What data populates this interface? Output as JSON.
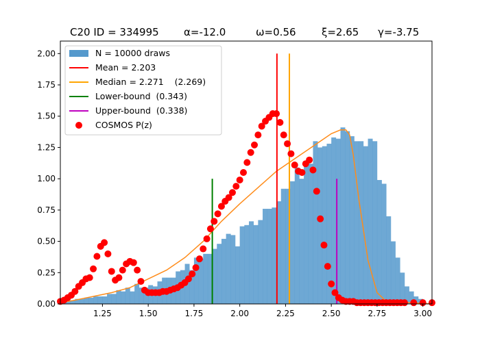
{
  "chart_data": {
    "type": "bar",
    "title_parts": [
      "C20 ID = 334995",
      "α=-12.0",
      "ω=0.56",
      "ξ=2.65",
      "γ=-3.75"
    ],
    "xlim": [
      1.02,
      3.05
    ],
    "ylim": [
      0,
      2.1
    ],
    "x_ticks": [
      1.25,
      1.5,
      1.75,
      2.0,
      2.25,
      2.5,
      2.75,
      3.0
    ],
    "x_tick_labels": [
      "1.25",
      "1.50",
      "1.75",
      "2.00",
      "2.25",
      "2.50",
      "2.75",
      "3.00"
    ],
    "y_ticks": [
      0,
      0.25,
      0.5,
      0.75,
      1.0,
      1.25,
      1.5,
      1.75,
      2.0
    ],
    "y_tick_labels": [
      "0.00",
      "0.25",
      "0.50",
      "0.75",
      "1.00",
      "1.25",
      "1.50",
      "1.75",
      "2.00"
    ],
    "legend_location": "top-left",
    "legend": [
      {
        "label": "N = 10000 draws",
        "kind": "patch",
        "color": "#5599cc"
      },
      {
        "label": "Mean = 2.203",
        "kind": "line",
        "color": "#ff0000"
      },
      {
        "label": "Median = 2.271    (2.269)",
        "kind": "line",
        "color": "#ffa500"
      },
      {
        "label": "Lower-bound  (0.343)",
        "kind": "line",
        "color": "#008000"
      },
      {
        "label": "Upper-bound  (0.338)",
        "kind": "line",
        "color": "#bf00bf"
      },
      {
        "label": "COSMOS P(z)",
        "kind": "dot",
        "color": "#ff0000"
      }
    ],
    "histogram": {
      "name": "N = 10000 draws",
      "color": "#5599cc",
      "bin_start": 1.0,
      "bin_width": 0.025,
      "values": [
        0.01,
        0.02,
        0.03,
        0.03,
        0.04,
        0.04,
        0.05,
        0.05,
        0.06,
        0.06,
        0.06,
        0.08,
        0.08,
        0.11,
        0.1,
        0.13,
        0.1,
        0.16,
        0.13,
        0.13,
        0.15,
        0.14,
        0.18,
        0.21,
        0.21,
        0.21,
        0.26,
        0.27,
        0.32,
        0.27,
        0.37,
        0.36,
        0.4,
        0.4,
        0.44,
        0.48,
        0.52,
        0.56,
        0.55,
        0.46,
        0.62,
        0.63,
        0.66,
        0.63,
        0.67,
        0.76,
        0.76,
        0.77,
        0.82,
        0.92,
        0.92,
        0.98,
        1.09,
        1.0,
        1.12,
        1.12,
        1.3,
        1.25,
        1.26,
        1.28,
        1.33,
        1.32,
        1.41,
        1.38,
        1.34,
        1.3,
        1.3,
        1.26,
        1.32,
        1.3,
        0.99,
        0.96,
        0.7,
        0.5,
        0.37,
        0.25,
        0.14,
        0.1,
        0.06,
        0.04
      ],
      "values_tail": [
        0.0
      ]
    },
    "fit_curve": {
      "color": "#ff8c1a",
      "x": [
        1.02,
        1.1,
        1.2,
        1.3,
        1.4,
        1.5,
        1.6,
        1.7,
        1.8,
        1.9,
        2.0,
        2.1,
        2.2,
        2.3,
        2.4,
        2.45,
        2.5,
        2.55,
        2.58,
        2.6,
        2.62,
        2.65,
        2.7,
        2.75,
        2.8,
        3.05
      ],
      "y": [
        0.01,
        0.03,
        0.06,
        0.09,
        0.13,
        0.2,
        0.27,
        0.37,
        0.5,
        0.66,
        0.8,
        0.93,
        1.06,
        1.16,
        1.26,
        1.31,
        1.36,
        1.39,
        1.39,
        1.35,
        1.19,
        0.84,
        0.35,
        0.09,
        0.02,
        0.0
      ]
    },
    "cosmos_pz": {
      "name": "COSMOS P(z)",
      "color": "#ff0000",
      "x": [
        1.02,
        1.04,
        1.06,
        1.08,
        1.1,
        1.12,
        1.14,
        1.16,
        1.18,
        1.2,
        1.22,
        1.24,
        1.26,
        1.28,
        1.3,
        1.32,
        1.34,
        1.36,
        1.38,
        1.4,
        1.42,
        1.44,
        1.46,
        1.48,
        1.5,
        1.52,
        1.54,
        1.56,
        1.58,
        1.6,
        1.62,
        1.64,
        1.66,
        1.68,
        1.7,
        1.72,
        1.74,
        1.76,
        1.78,
        1.8,
        1.82,
        1.84,
        1.86,
        1.88,
        1.9,
        1.92,
        1.94,
        1.96,
        1.98,
        2.0,
        2.02,
        2.04,
        2.06,
        2.08,
        2.1,
        2.12,
        2.14,
        2.16,
        2.18,
        2.2,
        2.22,
        2.24,
        2.26,
        2.28,
        2.3,
        2.32,
        2.34,
        2.36,
        2.38,
        2.4,
        2.42,
        2.44,
        2.46,
        2.48,
        2.5,
        2.52,
        2.54,
        2.56,
        2.58,
        2.6,
        2.62,
        2.64,
        2.66,
        2.68,
        2.7,
        2.72,
        2.74,
        2.76,
        2.78,
        2.8,
        2.82,
        2.84,
        2.86,
        2.88,
        2.9,
        2.95,
        3.0,
        3.05
      ],
      "y": [
        0.02,
        0.03,
        0.05,
        0.07,
        0.1,
        0.14,
        0.17,
        0.2,
        0.21,
        0.28,
        0.38,
        0.46,
        0.49,
        0.4,
        0.26,
        0.19,
        0.21,
        0.27,
        0.32,
        0.34,
        0.33,
        0.27,
        0.18,
        0.11,
        0.09,
        0.09,
        0.09,
        0.09,
        0.1,
        0.1,
        0.11,
        0.12,
        0.13,
        0.15,
        0.17,
        0.2,
        0.24,
        0.29,
        0.36,
        0.44,
        0.52,
        0.6,
        0.66,
        0.72,
        0.78,
        0.82,
        0.85,
        0.89,
        0.94,
        0.99,
        1.05,
        1.13,
        1.21,
        1.27,
        1.35,
        1.42,
        1.46,
        1.49,
        1.52,
        1.52,
        1.45,
        1.35,
        1.28,
        1.2,
        1.11,
        1.06,
        1.05,
        1.12,
        1.15,
        1.07,
        0.9,
        0.68,
        0.47,
        0.3,
        0.16,
        0.09,
        0.05,
        0.03,
        0.02,
        0.02,
        0.02,
        0.01,
        0.01,
        0.01,
        0.01,
        0.01,
        0.01,
        0.01,
        0.01,
        0.01,
        0.01,
        0.01,
        0.01,
        0.01,
        0.01,
        0.01,
        0.01,
        0.01
      ]
    },
    "vertical_lines": [
      {
        "name": "Mean",
        "x": 2.203,
        "y_top": 2.0,
        "color": "#ff0000"
      },
      {
        "name": "Median",
        "x": 2.271,
        "y_top": 2.0,
        "color": "#ffa500"
      },
      {
        "name": "Lower-bound",
        "x": 1.85,
        "y_top": 1.0,
        "color": "#008000"
      },
      {
        "name": "Upper-bound",
        "x": 2.53,
        "y_top": 1.0,
        "color": "#bf00bf"
      }
    ]
  }
}
